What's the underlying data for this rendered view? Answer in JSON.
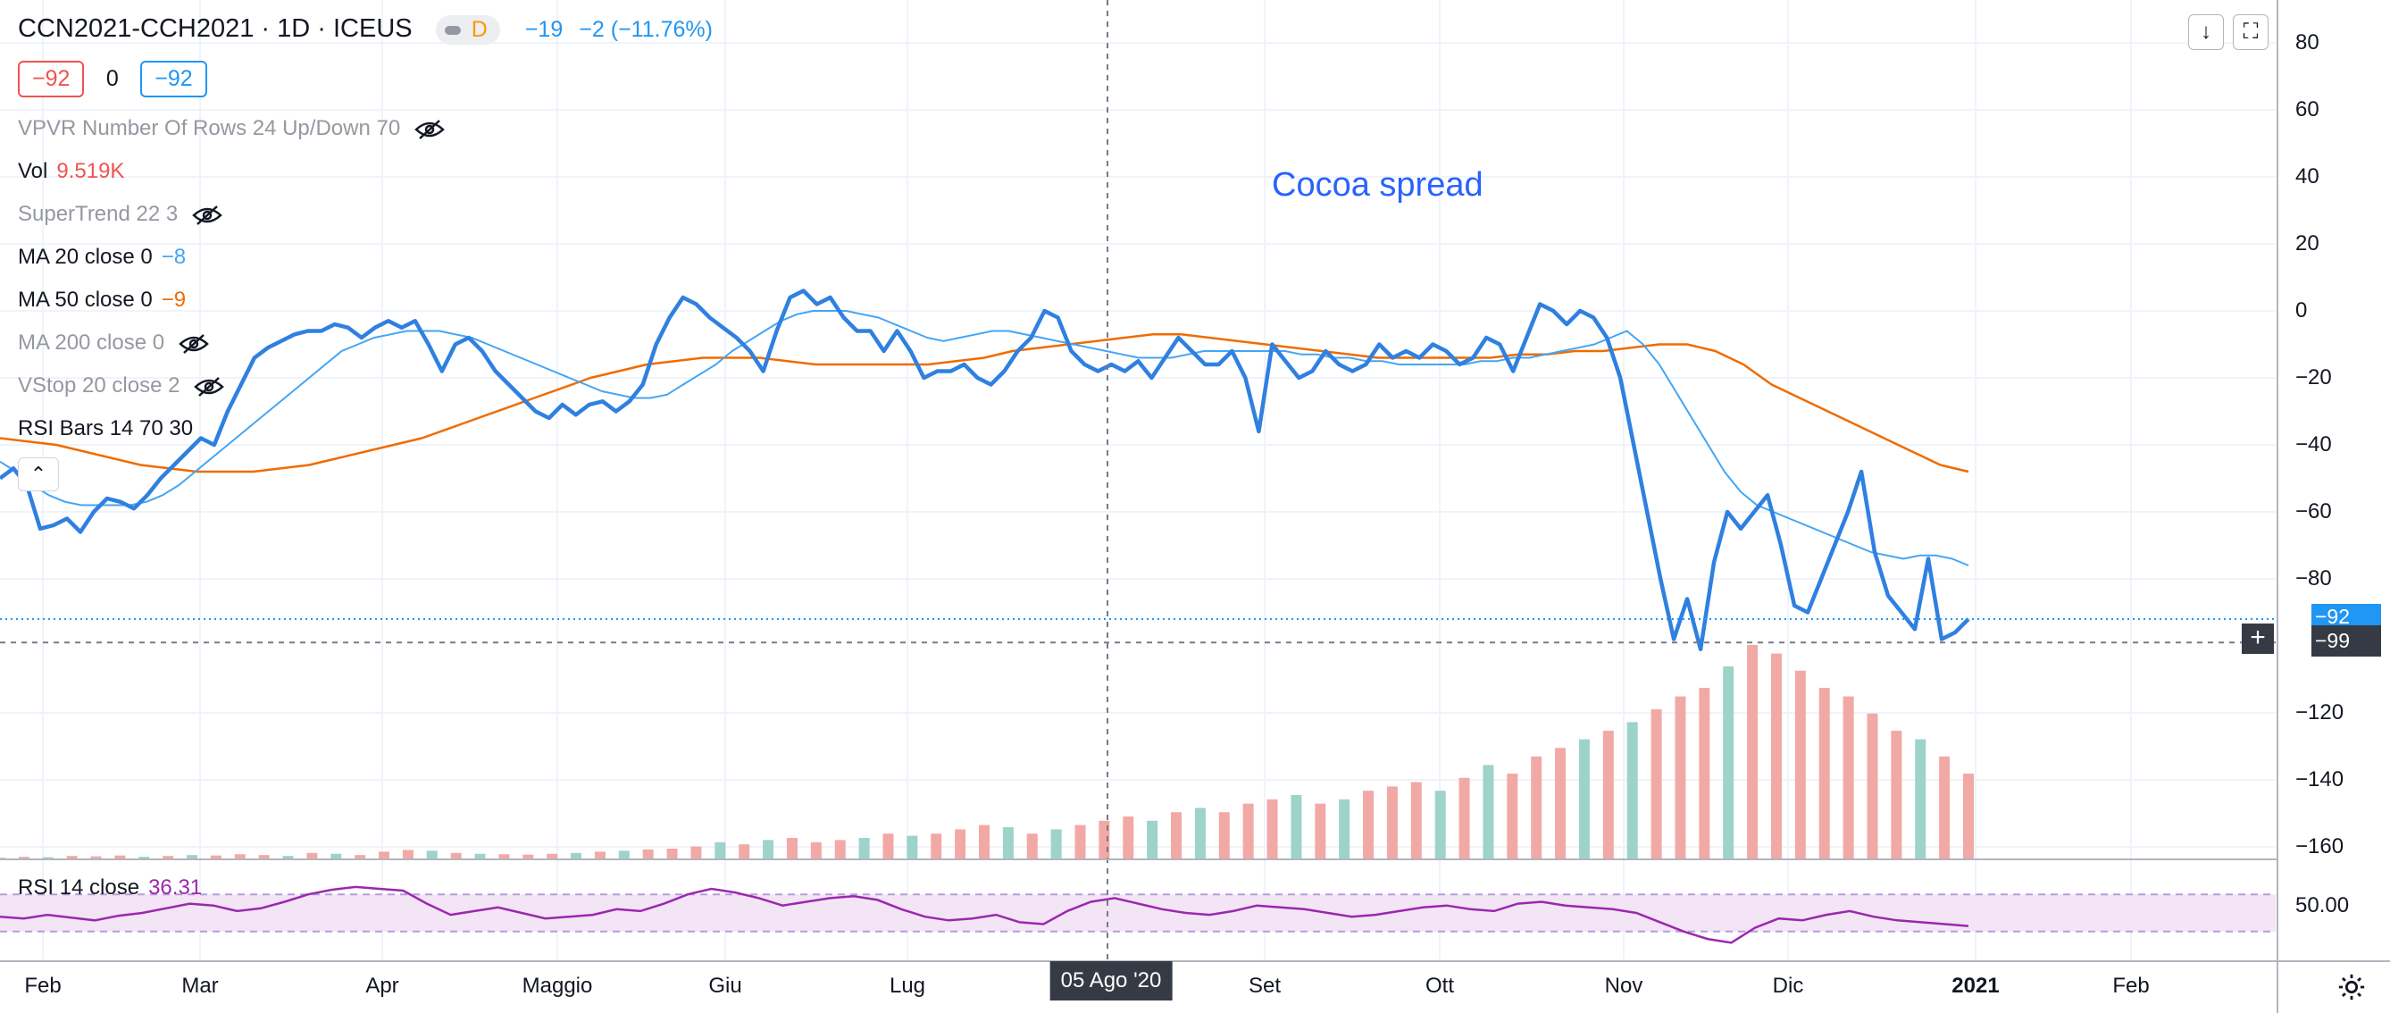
{
  "header": {
    "symbol": "CCN2021-CCH2021",
    "interval": "1D",
    "exchange": "ICEUS",
    "timeframe_badge": "D",
    "change_abs": "−19",
    "change_pct": "−2 (−11.76%)"
  },
  "pills": {
    "sell": "−92",
    "spread": "0",
    "buy": "−92"
  },
  "indicators": [
    {
      "name": "VPVR Number Of Rows 24 Up/Down 70",
      "value": "",
      "hidden": true
    },
    {
      "name": "Vol",
      "value": "9.519K",
      "hidden": false
    },
    {
      "name": "SuperTrend 22 3",
      "value": "",
      "hidden": true
    },
    {
      "name": "MA 20 close 0",
      "value": "−8",
      "hidden": false
    },
    {
      "name": "MA 50 close 0",
      "value": "−9",
      "hidden": false
    },
    {
      "name": "MA 200 close 0",
      "value": "",
      "hidden": true
    },
    {
      "name": "VStop 20 close 2",
      "value": "",
      "hidden": true
    },
    {
      "name": "RSI Bars 14 70 30",
      "value": "",
      "hidden": false
    }
  ],
  "annotation": "Cocoa spread",
  "rsi": {
    "label": "RSI 14 close",
    "value": "36.31",
    "axis_label": "50.00",
    "upper": 70,
    "lower": 30
  },
  "price_axis": [
    "80",
    "60",
    "40",
    "20",
    "0",
    "−20",
    "−40",
    "−60",
    "−80",
    "−120",
    "−140",
    "−160"
  ],
  "price_tags": {
    "last": "−92",
    "cursor": "−99"
  },
  "time_axis": [
    "Feb",
    "Mar",
    "Apr",
    "Maggio",
    "Giu",
    "Lug",
    "Set",
    "Ott",
    "Nov",
    "Dic",
    "2021",
    "Feb"
  ],
  "cursor_time": "05 Ago '20",
  "colors": {
    "price_line": "#2f80e0",
    "ma20": "#42a5f5",
    "ma50": "#ef6c00",
    "volume_up": "#9dd3ca",
    "volume_down": "#f2a9a6",
    "rsi_line": "#9c27b0",
    "rsi_band": "#f3e5f5"
  },
  "chart_data": {
    "type": "line",
    "title": "CCN2021-CCH2021 1D ICEUS",
    "ylim": [
      -165,
      90
    ],
    "series": [
      {
        "name": "Spread",
        "values": [
          -50,
          -47,
          -52,
          -65,
          -64,
          -62,
          -66,
          -60,
          -56,
          -57,
          -59,
          -55,
          -50,
          -46,
          -42,
          -38,
          -40,
          -30,
          -22,
          -14,
          -11,
          -9,
          -7,
          -6,
          -6,
          -4,
          -5,
          -8,
          -5,
          -3,
          -5,
          -3,
          -10,
          -18,
          -10,
          -8,
          -12,
          -18,
          -22,
          -26,
          -30,
          -32,
          -28,
          -31,
          -28,
          -27,
          -30,
          -27,
          -22,
          -10,
          -2,
          4,
          2,
          -2,
          -5,
          -8,
          -12,
          -18,
          -6,
          4,
          6,
          2,
          4,
          -2,
          -6,
          -6,
          -12,
          -6,
          -12,
          -20,
          -18,
          -18,
          -16,
          -20,
          -22,
          -18,
          -12,
          -8,
          0,
          -2,
          -12,
          -16,
          -18,
          -16,
          -18,
          -15,
          -20,
          -14,
          -8,
          -12,
          -16,
          -16,
          -12,
          -20,
          -36,
          -10,
          -15,
          -20,
          -18,
          -12,
          -16,
          -18,
          -16,
          -10,
          -14,
          -12,
          -14,
          -10,
          -12,
          -16,
          -14,
          -8,
          -10,
          -18,
          -8,
          2,
          0,
          -4,
          0,
          -2,
          -8,
          -20,
          -40,
          -60,
          -80,
          -98,
          -86,
          -101,
          -75,
          -60,
          -65,
          -60,
          -55,
          -70,
          -88,
          -90,
          -80,
          -70,
          -60,
          -48,
          -72,
          -85,
          -90,
          -95,
          -74,
          -98,
          -96,
          -92
        ]
      },
      {
        "name": "MA 20",
        "values": [
          -45,
          -48,
          -52,
          -55,
          -57,
          -58,
          -58,
          -58,
          -58,
          -57,
          -55,
          -52,
          -48,
          -44,
          -40,
          -36,
          -32,
          -28,
          -24,
          -20,
          -16,
          -12,
          -10,
          -8,
          -7,
          -6,
          -6,
          -6,
          -7,
          -8,
          -10,
          -12,
          -14,
          -16,
          -18,
          -20,
          -22,
          -24,
          -25,
          -26,
          -26,
          -25,
          -22,
          -19,
          -16,
          -12,
          -9,
          -6,
          -3,
          -1,
          0,
          0,
          0,
          -1,
          -2,
          -4,
          -6,
          -8,
          -9,
          -8,
          -7,
          -6,
          -6,
          -7,
          -8,
          -9,
          -10,
          -11,
          -12,
          -13,
          -14,
          -14,
          -14,
          -13,
          -12,
          -12,
          -12,
          -12,
          -12,
          -12,
          -13,
          -13,
          -14,
          -14,
          -15,
          -15,
          -16,
          -16,
          -16,
          -16,
          -16,
          -15,
          -15,
          -14,
          -14,
          -13,
          -12,
          -11,
          -10,
          -8,
          -6,
          -10,
          -16,
          -24,
          -32,
          -40,
          -48,
          -54,
          -58,
          -60,
          -62,
          -64,
          -66,
          -68,
          -70,
          -72,
          -73,
          -74,
          -73,
          -73,
          -74,
          -76
        ]
      },
      {
        "name": "MA 50",
        "values": [
          -38,
          -39,
          -40,
          -42,
          -44,
          -46,
          -47,
          -48,
          -48,
          -48,
          -47,
          -46,
          -44,
          -42,
          -40,
          -38,
          -35,
          -32,
          -29,
          -26,
          -23,
          -20,
          -18,
          -16,
          -15,
          -14,
          -14,
          -14,
          -15,
          -16,
          -16,
          -16,
          -16,
          -16,
          -15,
          -14,
          -12,
          -11,
          -10,
          -9,
          -8,
          -7,
          -7,
          -8,
          -9,
          -10,
          -11,
          -12,
          -13,
          -14,
          -14,
          -14,
          -14,
          -14,
          -13,
          -13,
          -12,
          -12,
          -11,
          -10,
          -10,
          -12,
          -16,
          -22,
          -26,
          -30,
          -34,
          -38,
          -42,
          -46,
          -48
        ]
      },
      {
        "name": "Volume",
        "values": [
          0.4,
          0.6,
          0.5,
          0.8,
          0.7,
          0.9,
          0.6,
          0.8,
          1,
          0.9,
          1.2,
          1,
          0.8,
          1.5,
          1.3,
          1,
          1.8,
          2.2,
          2,
          1.5,
          1.3,
          1.2,
          1.1,
          1.3,
          1.5,
          1.8,
          2,
          2.3,
          2.5,
          3,
          4,
          3.5,
          4.5,
          5,
          4,
          4.5,
          5,
          6,
          5.5,
          6,
          7,
          8,
          7.5,
          6,
          7,
          8,
          9,
          10,
          9,
          11,
          12,
          11,
          13,
          14,
          15,
          13,
          14,
          16,
          17,
          18,
          16,
          19,
          22,
          20,
          24,
          26,
          28,
          30,
          32,
          35,
          38,
          40,
          45,
          50,
          48,
          44,
          40,
          38,
          34,
          30,
          28,
          24,
          20
        ]
      },
      {
        "name": "RSI 14",
        "values": [
          46,
          44,
          48,
          45,
          42,
          47,
          50,
          55,
          60,
          58,
          52,
          55,
          62,
          70,
          75,
          78,
          76,
          74,
          60,
          48,
          52,
          56,
          50,
          44,
          46,
          48,
          54,
          52,
          60,
          70,
          76,
          72,
          66,
          58,
          62,
          66,
          68,
          64,
          54,
          46,
          42,
          44,
          48,
          40,
          38,
          52,
          62,
          66,
          60,
          54,
          50,
          48,
          52,
          58,
          56,
          54,
          50,
          46,
          48,
          52,
          56,
          58,
          54,
          52,
          60,
          62,
          58,
          56,
          54,
          50,
          40,
          30,
          22,
          18,
          34,
          44,
          42,
          48,
          52,
          46,
          42,
          40,
          38,
          36
        ]
      }
    ]
  }
}
